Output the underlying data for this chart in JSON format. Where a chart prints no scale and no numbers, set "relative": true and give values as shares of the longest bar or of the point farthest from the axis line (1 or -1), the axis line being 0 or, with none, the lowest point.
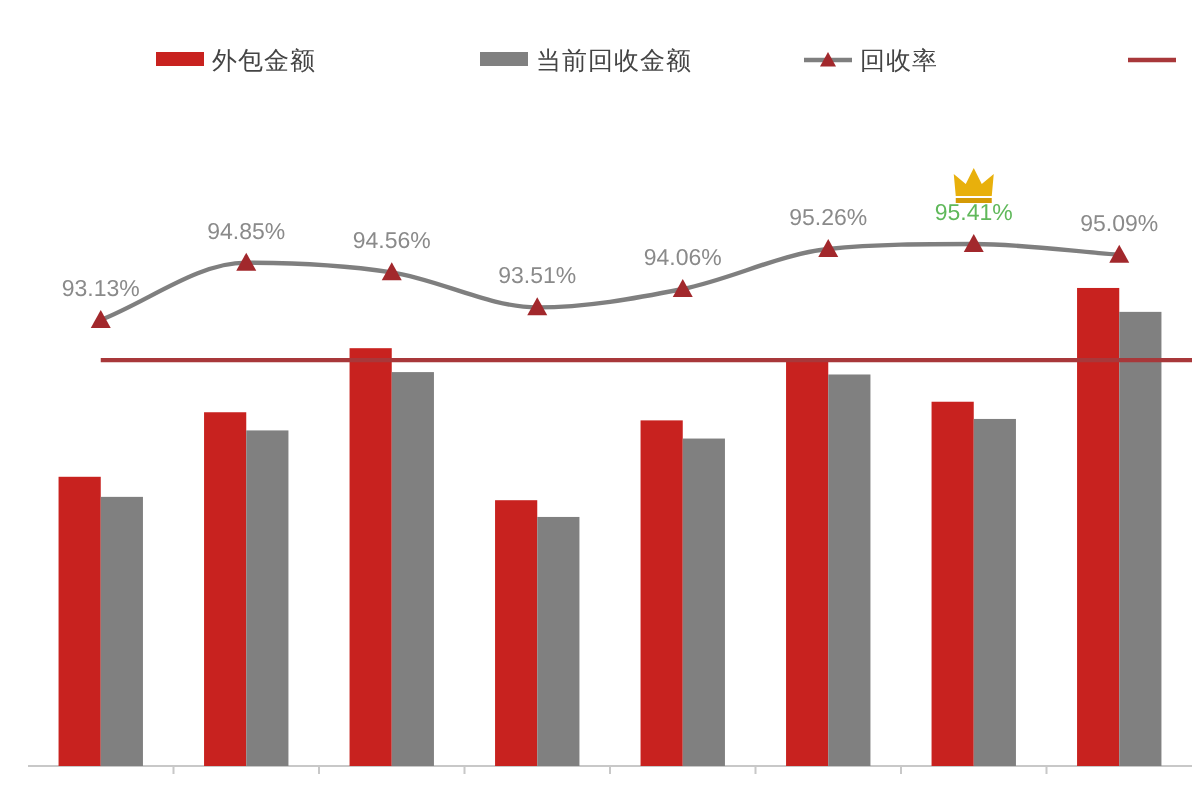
{
  "chart_data": [
    {
      "type": "bar",
      "relative": true,
      "legend": "top",
      "categories": [
        null,
        null,
        null,
        null,
        null,
        null,
        null,
        null
      ],
      "series": [
        {
          "name": "外包金额",
          "color": "#c8221f",
          "values": [
            0.605,
            0.74,
            0.874,
            0.556,
            0.723,
            0.849,
            0.762,
            1
          ]
        },
        {
          "name": "当前回收金额",
          "color": "#808080",
          "values": [
            0.563,
            0.702,
            0.824,
            0.521,
            0.685,
            0.819,
            0.726,
            0.95
          ]
        }
      ],
      "ref_lines": [
        {
          "axis": "y",
          "value": 0.849,
          "color": "#a8383a"
        }
      ]
    },
    {
      "type": "line",
      "legend": "top",
      "marker": "triangle",
      "categories": [
        null,
        null,
        null,
        null,
        null,
        null,
        null,
        null
      ],
      "series": [
        {
          "name": "回收率",
          "color": "#7f7f7f",
          "colors": [
            "#a2282c",
            "#a2282c",
            "#a2282c",
            "#a2282c",
            "#a2282c",
            "#a2282c",
            "#a2282c",
            "#a2282c"
          ],
          "values": [
            93.13,
            94.85,
            94.56,
            93.51,
            94.06,
            95.26,
            95.41,
            95.09
          ],
          "value_labels": [
            "93.13%",
            "94.85%",
            "94.56%",
            "93.51%",
            "94.06%",
            "95.26%",
            "95.41%",
            "95.09%"
          ]
        }
      ]
    }
  ]
}
